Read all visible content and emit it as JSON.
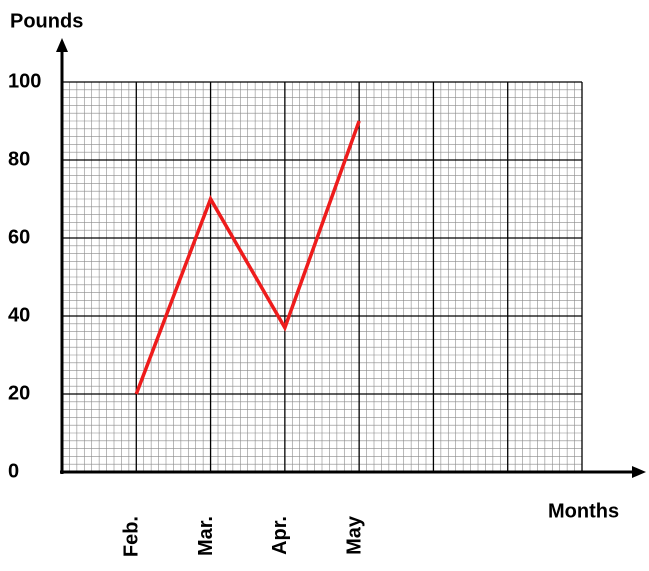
{
  "chart_data": {
    "type": "line",
    "y_axis_label": "Pounds",
    "x_axis_label": "Months",
    "categories": [
      "Feb.",
      "Mar.",
      "Apr.",
      "May",
      null,
      null,
      null
    ],
    "values": [
      20,
      70,
      37,
      90,
      null,
      null,
      null
    ],
    "color": "#ee1c1c",
    "ylim": [
      0,
      100
    ],
    "yticks": [
      0,
      20,
      40,
      60,
      80,
      100
    ],
    "grid": true
  }
}
